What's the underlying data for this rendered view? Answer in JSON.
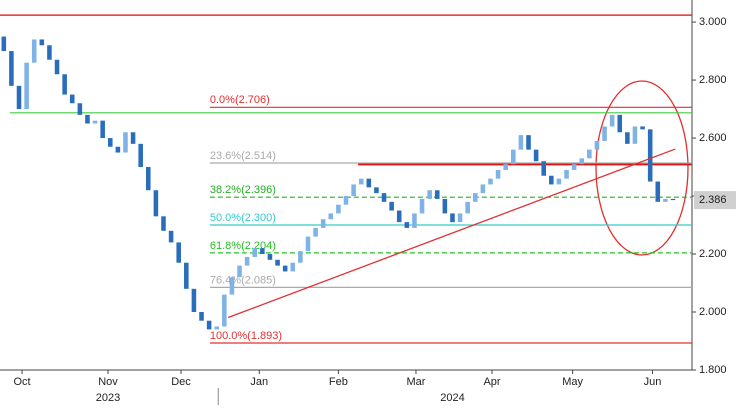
{
  "chart_data": {
    "type": "candlestick",
    "open": [
      2.95,
      2.9,
      2.78,
      2.7,
      2.86,
      2.94,
      2.92,
      2.87,
      2.82,
      2.75,
      2.72,
      2.68,
      2.65,
      2.66,
      2.6,
      2.57,
      2.55,
      2.62,
      2.58,
      2.5,
      2.42,
      2.33,
      2.28,
      2.24,
      2.17,
      2.08,
      2.0,
      1.97,
      1.94,
      1.95,
      2.06,
      2.12,
      2.16,
      2.19,
      2.22,
      2.2,
      2.18,
      2.16,
      2.14,
      2.17,
      2.21,
      2.26,
      2.29,
      2.32,
      2.34,
      2.37,
      2.4,
      2.44,
      2.46,
      2.43,
      2.41,
      2.38,
      2.35,
      2.31,
      2.29,
      2.34,
      2.39,
      2.42,
      2.39,
      2.34,
      2.31,
      2.34,
      2.38,
      2.41,
      2.44,
      2.46,
      2.49,
      2.51,
      2.56,
      2.61,
      2.56,
      2.52,
      2.47,
      2.44,
      2.46,
      2.49,
      2.51,
      2.53,
      2.56,
      2.59,
      2.64,
      2.68,
      2.62,
      2.58,
      2.64,
      2.63,
      2.45,
      2.38,
      2.39
    ],
    "close": [
      2.9,
      2.78,
      2.7,
      2.86,
      2.94,
      2.92,
      2.87,
      2.82,
      2.75,
      2.72,
      2.68,
      2.65,
      2.66,
      2.6,
      2.57,
      2.55,
      2.62,
      2.58,
      2.5,
      2.42,
      2.33,
      2.28,
      2.24,
      2.17,
      2.08,
      2.0,
      1.97,
      1.94,
      1.95,
      2.06,
      2.12,
      2.16,
      2.19,
      2.22,
      2.2,
      2.18,
      2.16,
      2.14,
      2.17,
      2.21,
      2.26,
      2.29,
      2.32,
      2.34,
      2.37,
      2.4,
      2.44,
      2.46,
      2.43,
      2.41,
      2.38,
      2.35,
      2.31,
      2.29,
      2.34,
      2.39,
      2.42,
      2.39,
      2.34,
      2.31,
      2.34,
      2.38,
      2.41,
      2.44,
      2.46,
      2.49,
      2.51,
      2.56,
      2.61,
      2.56,
      2.52,
      2.47,
      2.44,
      2.46,
      2.49,
      2.51,
      2.53,
      2.56,
      2.59,
      2.64,
      2.68,
      2.62,
      2.58,
      2.64,
      2.63,
      2.45,
      2.38,
      2.39,
      2.386
    ],
    "up_color": "#7fb2e5",
    "down_color": "#2a6ebb",
    "xlim": [
      -0.5,
      90.5
    ],
    "ylim": [
      1.8,
      3.0485
    ],
    "yticks": [
      {
        "value": 1.8,
        "label": "1.800"
      },
      {
        "value": 2.0,
        "label": "2.000"
      },
      {
        "value": 2.2,
        "label": "2.200"
      },
      {
        "value": 2.4,
        "label": "2.400"
      },
      {
        "value": 2.6,
        "label": "2.600"
      },
      {
        "value": 2.8,
        "label": "2.800"
      },
      {
        "value": 3.0,
        "label": "3.000"
      }
    ],
    "xticks": [
      {
        "value": 2.4,
        "label": "Oct"
      },
      {
        "value": 13.7,
        "label": "Nov"
      },
      {
        "value": 23.3,
        "label": "Dec"
      },
      {
        "value": 33.6,
        "label": "Jan"
      },
      {
        "value": 44,
        "label": "Feb"
      },
      {
        "value": 54.2,
        "label": "Mar"
      },
      {
        "value": 64.2,
        "label": "Apr"
      },
      {
        "value": 74.8,
        "label": "May"
      },
      {
        "value": 85.3,
        "label": "Jun"
      }
    ],
    "years": [
      {
        "value": 13.7,
        "label": "2023"
      },
      {
        "value": 59,
        "label": "2024"
      }
    ],
    "year_boundary": 28.2,
    "last_price": 2.386,
    "fib_levels": [
      {
        "label": "0.0%(2.706)",
        "value": 2.706,
        "color": "#e03030",
        "dashed": false
      },
      {
        "label": "23.6%(2.514)",
        "value": 2.514,
        "color": "#aaaaaa",
        "dashed": false
      },
      {
        "label": "38.2%(2.396)",
        "value": 2.396,
        "color": "#22b022",
        "dashed": true
      },
      {
        "label": "50.0%(2.300)",
        "value": 2.3,
        "color": "#33cccc",
        "dashed": false
      },
      {
        "label": "61.8%(2.204)",
        "value": 2.204,
        "color": "#22c022",
        "dashed": true
      },
      {
        "label": "76.4%(2.085)",
        "value": 2.085,
        "color": "#aaaaaa",
        "dashed": false
      },
      {
        "label": "100.0%(1.893)",
        "value": 1.893,
        "color": "#e03030",
        "dashed": false
      }
    ],
    "fib_from": 27.1,
    "hlines": [
      {
        "value": 3.024,
        "from": -0.5,
        "color": "#e03030",
        "width": 1.5
      },
      {
        "value": 2.687,
        "from": 0.8,
        "color": "#44cc44",
        "width": 1.2
      },
      {
        "value": 2.51,
        "from": 46.6,
        "color": "#dd1111",
        "width": 2.5
      }
    ],
    "trendline": {
      "x": [
        29.5,
        88.3
      ],
      "y": [
        1.981,
        2.562
      ],
      "color": "#e03030"
    }
  }
}
